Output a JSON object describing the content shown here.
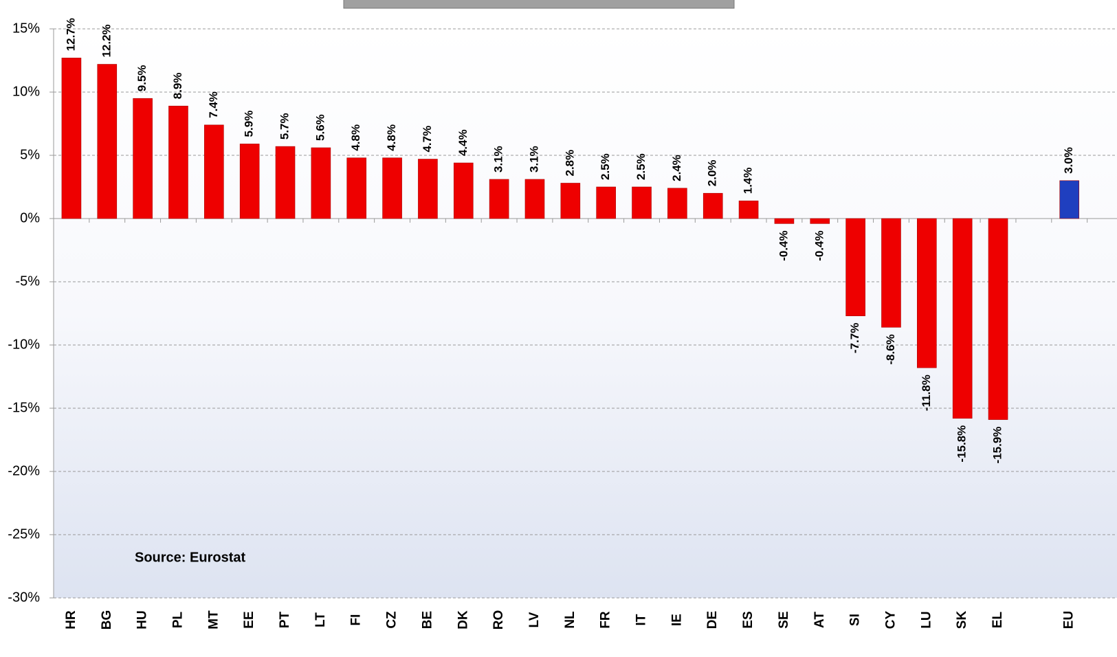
{
  "chart_data": {
    "type": "bar",
    "categories": [
      "HR",
      "BG",
      "HU",
      "PL",
      "MT",
      "EE",
      "PT",
      "LT",
      "FI",
      "CZ",
      "BE",
      "DK",
      "RO",
      "LV",
      "NL",
      "FR",
      "IT",
      "IE",
      "DE",
      "ES",
      "SE",
      "AT",
      "SI",
      "CY",
      "LU",
      "SK",
      "EL",
      null,
      "EU"
    ],
    "values": [
      12.7,
      12.2,
      9.5,
      8.9,
      7.4,
      5.9,
      5.7,
      5.6,
      4.8,
      4.8,
      4.7,
      4.4,
      3.1,
      3.1,
      2.8,
      2.5,
      2.5,
      2.4,
      2.0,
      1.4,
      -0.4,
      -0.4,
      -7.7,
      -8.6,
      -11.8,
      -15.8,
      -15.9,
      null,
      3.0
    ],
    "value_labels": [
      "12.7%",
      "12.2%",
      "9.5%",
      "8.9%",
      "7.4%",
      "5.9%",
      "5.7%",
      "5.6%",
      "4.8%",
      "4.8%",
      "4.7%",
      "4.4%",
      "3.1%",
      "3.1%",
      "2.8%",
      "2.5%",
      "2.5%",
      "2.4%",
      "2.0%",
      "1.4%",
      "-0.4%",
      "-0.4%",
      "-7.7%",
      "-8.6%",
      "-11.8%",
      "-15.8%",
      "-15.9%",
      null,
      "3.0%"
    ],
    "colors": [
      "#ee0000",
      "#ee0000",
      "#ee0000",
      "#ee0000",
      "#ee0000",
      "#ee0000",
      "#ee0000",
      "#ee0000",
      "#ee0000",
      "#ee0000",
      "#ee0000",
      "#ee0000",
      "#ee0000",
      "#ee0000",
      "#ee0000",
      "#ee0000",
      "#ee0000",
      "#ee0000",
      "#ee0000",
      "#ee0000",
      "#ee0000",
      "#ee0000",
      "#ee0000",
      "#ee0000",
      "#ee0000",
      "#ee0000",
      "#ee0000",
      null,
      "#1f3fbf"
    ],
    "ylim": [
      -30,
      15
    ],
    "yticks": [
      {
        "value": -30,
        "label": "-30%"
      },
      {
        "value": -25,
        "label": "-25%"
      },
      {
        "value": -20,
        "label": "-20%"
      },
      {
        "value": -15,
        "label": "-15%"
      },
      {
        "value": -10,
        "label": "-10%"
      },
      {
        "value": -5,
        "label": "-5%"
      },
      {
        "value": 0,
        "label": "0%"
      },
      {
        "value": 5,
        "label": "5%"
      },
      {
        "value": 10,
        "label": "10%"
      },
      {
        "value": 15,
        "label": "15%"
      }
    ],
    "grid": true,
    "annotation": "Source: Eurostat"
  }
}
